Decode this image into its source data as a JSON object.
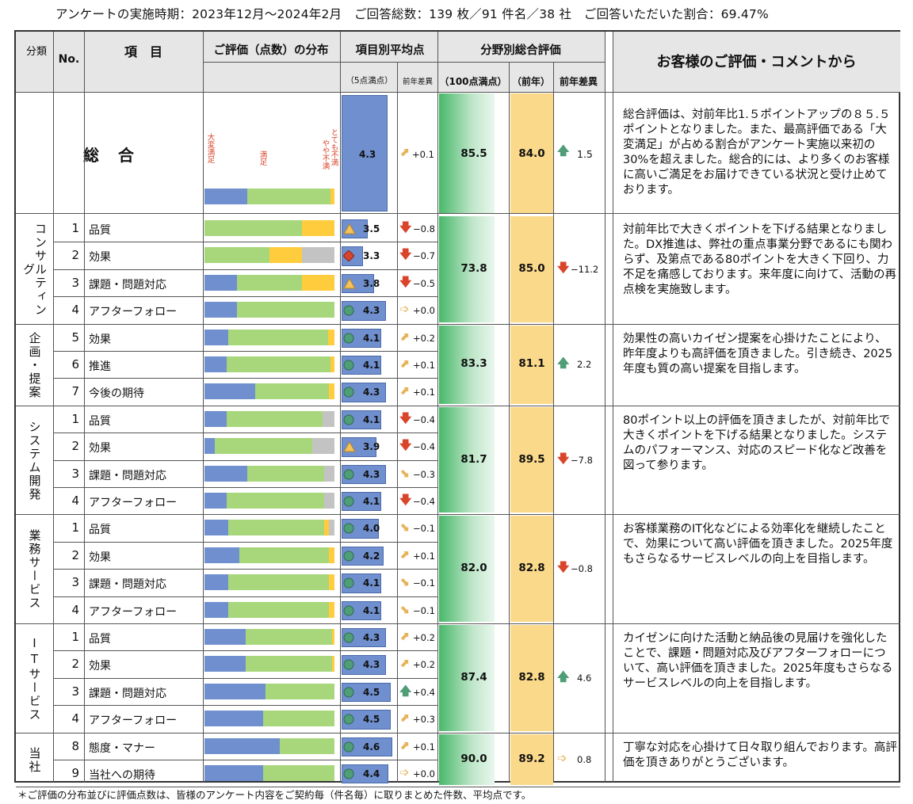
{
  "header": "アンケートの実施時期：2023年12月～2024年2月　ご回答総数：139 枚／91 件名／38 社　ご回答いただいた割合：69.47%",
  "footnote": "＊ご評価の分布並びに評価点数は、皆様のアンケート内容をご契約毎（件名毎）に取りまとめた件数、平均点です。",
  "columns": {
    "category": "分類",
    "no": "No.",
    "item": "項　目",
    "distribution": "ご評価（点数）の分布",
    "avg": "項目別平均点",
    "avg_scale": "（5点満点）",
    "avg_diff": "前年差異",
    "field": "分野別総合評価",
    "field_scale": "（100点満点）",
    "field_prev": "（前年）",
    "field_diff": "前年差異",
    "comment": "お客様のご評価・コメントから"
  },
  "legend": {
    "very_satisfied": "大変満足",
    "satisfied": "満足",
    "somewhat_dissatisfied": "やや不満",
    "dissatisfied": "とても不満"
  },
  "colors": {
    "very_satisfied": "#6f8fce",
    "satisfied": "#a8d77b",
    "somewhat": "#ffcc3d",
    "gray": "#c3c3c3",
    "up": "#4f9e78",
    "down": "#d9452b",
    "diag": "#e6b35a"
  },
  "overall": {
    "label": "総　合",
    "avg": "4.3",
    "avg_diff": "+0.1",
    "score": "85.5",
    "prev": "84.0",
    "diff": "1.5",
    "comment": "総合評価は、対前年比1.５ポイントアップの８５.５ポイントとなりました。また、最高評価である「大変満足」が占める割合がアンケート実施以来初の30%を超えました。総合的には、より多くのお客様に高いご満足をお届けできている状況と受け止めております。"
  },
  "groups": [
    {
      "name": "コンサルティング",
      "score": "73.8",
      "prev": "85.0",
      "diff": "−11.2",
      "comment": "対前年比で大きくポイントを下げる結果となりました。DX推進は、弊社の重点事業分野であるにも関わらず、及第点である80ポイントを大きく下回り、力不足を痛感しております。来年度に向けて、活動の再点検を実施致します。",
      "rows": [
        {
          "no": "1",
          "item": "品質",
          "avg": "3.5",
          "diff": "−0.8"
        },
        {
          "no": "2",
          "item": "効果",
          "avg": "3.3",
          "diff": "−0.7"
        },
        {
          "no": "3",
          "item": "課題・問題対応",
          "avg": "3.8",
          "diff": "−0.5"
        },
        {
          "no": "4",
          "item": "アフターフォロー",
          "avg": "4.3",
          "diff": "+0.0"
        }
      ]
    },
    {
      "name": "企画・提案",
      "score": "83.3",
      "prev": "81.1",
      "diff": "2.2",
      "comment": "効果性の高いカイゼン提案を心掛けたことにより、昨年度よりも高評価を頂きました。引き続き、2025年度も質の高い提案を目指します。",
      "rows": [
        {
          "no": "5",
          "item": "効果",
          "avg": "4.1",
          "diff": "+0.2"
        },
        {
          "no": "6",
          "item": "推進",
          "avg": "4.1",
          "diff": "+0.1"
        },
        {
          "no": "7",
          "item": "今後の期待",
          "avg": "4.3",
          "diff": "+0.1"
        }
      ]
    },
    {
      "name": "システム開発",
      "score": "81.7",
      "prev": "89.5",
      "diff": "−7.8",
      "comment": "80ポイント以上の評価を頂きましたが、対前年比で大きくポイントを下げる結果となりました。システムのパフォーマンス、対応のスピード化など改善を図って参ります。",
      "rows": [
        {
          "no": "1",
          "item": "品質",
          "avg": "4.1",
          "diff": "−0.4"
        },
        {
          "no": "2",
          "item": "効果",
          "avg": "3.9",
          "diff": "−0.4"
        },
        {
          "no": "3",
          "item": "課題・問題対応",
          "avg": "4.3",
          "diff": "−0.3"
        },
        {
          "no": "4",
          "item": "アフターフォロー",
          "avg": "4.1",
          "diff": "−0.4"
        }
      ]
    },
    {
      "name": "業務サービス",
      "score": "82.0",
      "prev": "82.8",
      "diff": "−0.8",
      "comment": "お客様業務のIT化などによる効率化を継続したことで、効果について高い評価を頂きました。2025年度もさらなるサービスレベルの向上を目指します。",
      "rows": [
        {
          "no": "1",
          "item": "品質",
          "avg": "4.0",
          "diff": "−0.1"
        },
        {
          "no": "2",
          "item": "効果",
          "avg": "4.2",
          "diff": "+0.1"
        },
        {
          "no": "3",
          "item": "課題・問題対応",
          "avg": "4.1",
          "diff": "−0.1"
        },
        {
          "no": "4",
          "item": "アフターフォロー",
          "avg": "4.1",
          "diff": "−0.1"
        }
      ]
    },
    {
      "name": "ITサービス",
      "score": "87.4",
      "prev": "82.8",
      "diff": "4.6",
      "comment": "カイゼンに向けた活動と納品後の見届けを強化したことで、課題・問題対応及びアフターフォローについて、高い評価を頂きました。2025年度もさらなるサービスレベルの向上を目指します。",
      "rows": [
        {
          "no": "1",
          "item": "品質",
          "avg": "4.3",
          "diff": "+0.2"
        },
        {
          "no": "2",
          "item": "効果",
          "avg": "4.3",
          "diff": "+0.2"
        },
        {
          "no": "3",
          "item": "課題・問題対応",
          "avg": "4.5",
          "diff": "+0.4"
        },
        {
          "no": "4",
          "item": "アフターフォロー",
          "avg": "4.5",
          "diff": "+0.3"
        }
      ]
    },
    {
      "name": "当社",
      "score": "90.0",
      "prev": "89.2",
      "diff": "0.8",
      "comment": "丁寧な対応を心掛けて日々取り組んでおります。高評価を頂きありがとうございます。",
      "rows": [
        {
          "no": "8",
          "item": "態度・マナー",
          "avg": "4.6",
          "diff": "+0.1"
        },
        {
          "no": "9",
          "item": "当社への期待",
          "avg": "4.4",
          "diff": "+0.0"
        }
      ]
    }
  ]
}
